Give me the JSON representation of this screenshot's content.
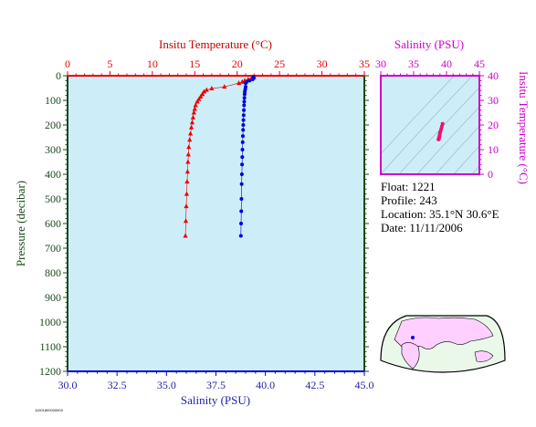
{
  "footer_code": "11001800000003",
  "float_info": {
    "float_label": "Float:",
    "float_value": "1221",
    "profile_label": "Profile:",
    "profile_value": "243",
    "location_label": "Location:",
    "location_value": "35.1°N  30.6°E",
    "date_label": "Date:",
    "date_value": "11/11/2006"
  },
  "colors": {
    "temperature": "#ee0000",
    "salinity": "#0000dd",
    "ts_axis": "#cc00cc",
    "plot_bg": "#cdeef8",
    "axis_dark": "#1a4a1a",
    "title_red": "#cc0000",
    "salinity_label": "#2222aa"
  },
  "chart_data": [
    {
      "type": "scatter",
      "title": "",
      "ylabel": "Pressure (decibar)",
      "yticks": [
        "0",
        "100",
        "200",
        "300",
        "400",
        "500",
        "600",
        "700",
        "800",
        "900",
        "1000",
        "1100",
        "1200"
      ],
      "ylim": [
        0,
        1200
      ],
      "y_reversed": true,
      "top_axis": {
        "label": "Insitu Temperature (°C)",
        "ticks": [
          "0",
          "5",
          "10",
          "15",
          "20",
          "25",
          "30",
          "35"
        ],
        "lim": [
          0,
          35
        ]
      },
      "bottom_axis": {
        "label": "Salinity (PSU)",
        "ticks": [
          "30.0",
          "32.5",
          "35.0",
          "37.5",
          "40.0",
          "42.5",
          "45.0"
        ],
        "lim": [
          30,
          45
        ]
      },
      "series": [
        {
          "axis": "top",
          "marker": "triangle",
          "points": [
            [
              22.0,
              5
            ],
            [
              21.7,
              10
            ],
            [
              21.3,
              15
            ],
            [
              20.9,
              20
            ],
            [
              20.6,
              25
            ],
            [
              20.2,
              30
            ],
            [
              18.5,
              45
            ],
            [
              17.0,
              52
            ],
            [
              16.4,
              58
            ],
            [
              16.1,
              65
            ],
            [
              15.9,
              75
            ],
            [
              15.7,
              85
            ],
            [
              15.5,
              95
            ],
            [
              15.3,
              105
            ],
            [
              15.1,
              120
            ],
            [
              15.0,
              135
            ],
            [
              14.9,
              150
            ],
            [
              14.8,
              170
            ],
            [
              14.7,
              190
            ],
            [
              14.6,
              210
            ],
            [
              14.5,
              235
            ],
            [
              14.4,
              260
            ],
            [
              14.3,
              290
            ],
            [
              14.25,
              320
            ],
            [
              14.2,
              350
            ],
            [
              14.15,
              390
            ],
            [
              14.1,
              430
            ],
            [
              14.05,
              480
            ],
            [
              14.0,
              530
            ],
            [
              13.95,
              590
            ],
            [
              13.9,
              650
            ]
          ]
        },
        {
          "axis": "bottom",
          "marker": "circle",
          "points": [
            [
              39.4,
              5
            ],
            [
              39.4,
              10
            ],
            [
              39.35,
              15
            ],
            [
              39.2,
              20
            ],
            [
              39.05,
              25
            ],
            [
              39.0,
              30
            ],
            [
              39.0,
              45
            ],
            [
              38.98,
              55
            ],
            [
              38.96,
              65
            ],
            [
              38.95,
              75
            ],
            [
              38.94,
              90
            ],
            [
              38.93,
              105
            ],
            [
              38.92,
              120
            ],
            [
              38.91,
              140
            ],
            [
              38.9,
              160
            ],
            [
              38.89,
              180
            ],
            [
              38.88,
              200
            ],
            [
              38.87,
              220
            ],
            [
              38.86,
              245
            ],
            [
              38.85,
              270
            ],
            [
              38.84,
              300
            ],
            [
              38.83,
              330
            ],
            [
              38.82,
              360
            ],
            [
              38.81,
              400
            ],
            [
              38.8,
              440
            ],
            [
              38.79,
              500
            ],
            [
              38.78,
              550
            ],
            [
              38.77,
              600
            ],
            [
              38.76,
              650
            ]
          ]
        }
      ]
    },
    {
      "type": "scatter",
      "title": "",
      "top_axis": {
        "label": "Salinity (PSU)",
        "ticks": [
          "30",
          "35",
          "40",
          "45"
        ],
        "lim": [
          30,
          45
        ]
      },
      "right_axis": {
        "label": "Insitu Temperature (°C)",
        "ticks": [
          "0",
          "10",
          "20",
          "30",
          "40"
        ],
        "lim": [
          0,
          40
        ]
      },
      "points": [
        [
          39.4,
          20.5
        ],
        [
          39.3,
          19.5
        ],
        [
          39.2,
          18.5
        ],
        [
          39.1,
          17.5
        ],
        [
          39.0,
          16.8
        ],
        [
          38.98,
          16.2
        ],
        [
          38.95,
          15.7
        ],
        [
          38.93,
          15.4
        ],
        [
          38.9,
          15.1
        ],
        [
          38.88,
          14.9
        ],
        [
          38.86,
          14.7
        ],
        [
          38.84,
          14.5
        ],
        [
          38.82,
          14.3
        ],
        [
          38.8,
          14.2
        ],
        [
          38.78,
          14.1
        ]
      ]
    }
  ]
}
